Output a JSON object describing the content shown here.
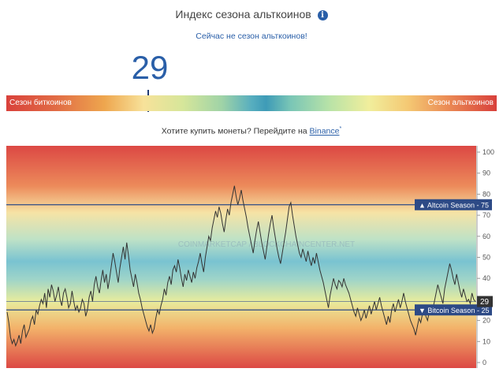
{
  "header": {
    "title": "Индекс сезона альткоинов",
    "info_icon": "info-icon",
    "status": "Сейчас не сезон альткоинов!"
  },
  "index_value": "29",
  "scale": {
    "left_label": "Сезон биткоинов",
    "right_label": "Сезон альткоинов",
    "marker_percent": 29
  },
  "buy_prompt": {
    "text": "Хотите купить монеты? Перейдите на ",
    "link": "Binance",
    "asterisk": "*"
  },
  "chart_data": {
    "type": "line",
    "ylim": [
      0,
      100
    ],
    "yticks": [
      0,
      10,
      20,
      30,
      40,
      50,
      60,
      70,
      80,
      90,
      100
    ],
    "grid": false,
    "background": "red-to-green vertical gradient",
    "series": [
      {
        "values": [
          24,
          19,
          12,
          9,
          11,
          8,
          10,
          13,
          9,
          15,
          18,
          12,
          14,
          16,
          20,
          22,
          18,
          25,
          23,
          27,
          30,
          28,
          33,
          26,
          35,
          31,
          37,
          34,
          29,
          32,
          36,
          30,
          27,
          33,
          35,
          31,
          26,
          28,
          34,
          29,
          25,
          27,
          24,
          26,
          30,
          28,
          22,
          25,
          31,
          34,
          29,
          37,
          41,
          36,
          33,
          39,
          44,
          38,
          42,
          35,
          40,
          46,
          52,
          48,
          43,
          38,
          45,
          50,
          55,
          49,
          57,
          51,
          44,
          40,
          36,
          42,
          38,
          33,
          30,
          26,
          23,
          20,
          17,
          15,
          18,
          14,
          16,
          21,
          25,
          23,
          27,
          30,
          35,
          32,
          38,
          41,
          37,
          44,
          46,
          43,
          49,
          45,
          40,
          36,
          42,
          39,
          44,
          41,
          38,
          43,
          40,
          45,
          48,
          52,
          47,
          43,
          50,
          55,
          60,
          58,
          64,
          68,
          72,
          69,
          74,
          71,
          66,
          62,
          68,
          73,
          70,
          76,
          80,
          84,
          79,
          75,
          78,
          82,
          77,
          73,
          69,
          64,
          60,
          56,
          52,
          58,
          63,
          67,
          62,
          57,
          53,
          49,
          55,
          61,
          66,
          70,
          64,
          59,
          54,
          50,
          47,
          52,
          57,
          62,
          68,
          74,
          76,
          70,
          65,
          60,
          56,
          52,
          50,
          54,
          51,
          48,
          53,
          49,
          46,
          50,
          47,
          52,
          48,
          44,
          41,
          38,
          34,
          30,
          26,
          32,
          36,
          40,
          37,
          35,
          39,
          38,
          36,
          40,
          37,
          35,
          33,
          30,
          27,
          24,
          22,
          26,
          23,
          20,
          22,
          25,
          21,
          24,
          27,
          23,
          26,
          29,
          25,
          28,
          31,
          27,
          24,
          21,
          18,
          22,
          19,
          25,
          28,
          24,
          27,
          30,
          26,
          29,
          33,
          29,
          26,
          23,
          20,
          18,
          16,
          13,
          17,
          21,
          19,
          23,
          26,
          22,
          20,
          24,
          27,
          25,
          29,
          33,
          37,
          34,
          31,
          28,
          35,
          39,
          43,
          47,
          44,
          40,
          37,
          42,
          38,
          34,
          31,
          35,
          32,
          29,
          30,
          28,
          33,
          30,
          29
        ],
        "color": "#333333"
      }
    ],
    "annotations": [
      {
        "label": "Altcoin Season",
        "value": 75,
        "marker": "▲"
      },
      {
        "label": "Bitcoin Season",
        "value": 25,
        "marker": "▼"
      },
      {
        "label": "",
        "value": 29,
        "kind": "current"
      }
    ],
    "watermark": "COINMARKETCAP / BLOCKCHAINCENTER.NET"
  }
}
